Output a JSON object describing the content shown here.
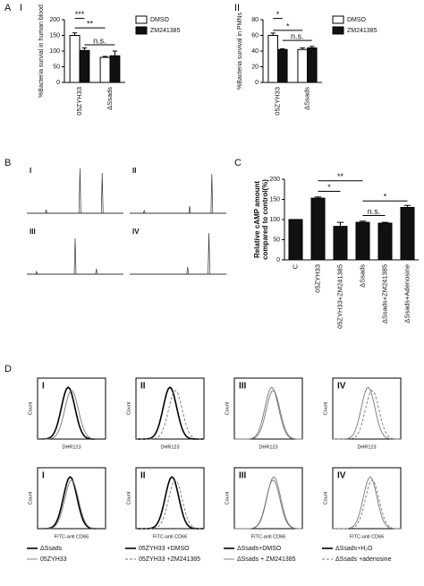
{
  "panel_letters": [
    "A",
    "B",
    "C",
    "D"
  ],
  "chart_data": [
    {
      "type": "bar",
      "panel_label": "I",
      "y_label": "%Bacteria survial in human blood",
      "categories": [
        "05ZYH33",
        "ΔSsads"
      ],
      "series": [
        {
          "name": "DMSO",
          "color": "#ffffff",
          "values": [
            150,
            80
          ],
          "errors": [
            8,
            3
          ]
        },
        {
          "name": "ZM241385",
          "color": "#111111",
          "values": [
            102,
            85
          ],
          "errors": [
            8,
            15
          ]
        }
      ],
      "ylim": [
        0,
        200
      ],
      "yticks": [
        0,
        50,
        100,
        150,
        200
      ],
      "annotations": [
        "**",
        "***",
        "n.s."
      ]
    },
    {
      "type": "bar",
      "panel_label": "II",
      "y_label": "%Bacteria survival in PMNs",
      "categories": [
        "05ZYH33",
        "ΔSsads"
      ],
      "series": [
        {
          "name": "DMSO",
          "color": "#ffffff",
          "values": [
            60,
            42
          ],
          "errors": [
            3,
            2
          ]
        },
        {
          "name": "ZM241385",
          "color": "#111111",
          "values": [
            42,
            44
          ],
          "errors": [
            1,
            2
          ]
        }
      ],
      "ylim": [
        0,
        80
      ],
      "yticks": [
        0,
        20,
        40,
        60,
        80
      ],
      "annotations": [
        "*",
        "*",
        "n.s."
      ]
    },
    {
      "type": "bar",
      "y_label": [
        "Relative cAMP amount",
        "compared to control(%)"
      ],
      "categories": [
        "C",
        "05ZYH33",
        "05ZYH33+ZM241385",
        "ΔSsads",
        "ΔSsads+ZM241385",
        "ΔSsads+Adenosine"
      ],
      "values": [
        100,
        153,
        83,
        93,
        91,
        130
      ],
      "errors": [
        0,
        3,
        10,
        3,
        2,
        5
      ],
      "color": "#111111",
      "ylim": [
        0,
        200
      ],
      "yticks": [
        0,
        50,
        100,
        150,
        200
      ],
      "annotations": [
        "**",
        "*",
        "n.s.",
        "*"
      ]
    }
  ],
  "chromatograms": {
    "labels": [
      "I",
      "II",
      "III",
      "IV"
    ]
  },
  "flow": {
    "panel_labels": [
      "I",
      "II",
      "III",
      "IV"
    ],
    "x_labels": [
      "DHR123",
      "FITC-anti CD66"
    ],
    "y_label": "Count",
    "legends": [
      [
        "ΔSsads",
        "05ZYH33"
      ],
      [
        "05ZYH33 +DMSO",
        "05ZYH33 +ZM241385"
      ],
      [
        "ΔSsads+DMSO",
        "ΔSsads + ZM241385"
      ],
      [
        "ΔSsads+H₂O",
        "ΔSsads +adenosine"
      ]
    ]
  }
}
